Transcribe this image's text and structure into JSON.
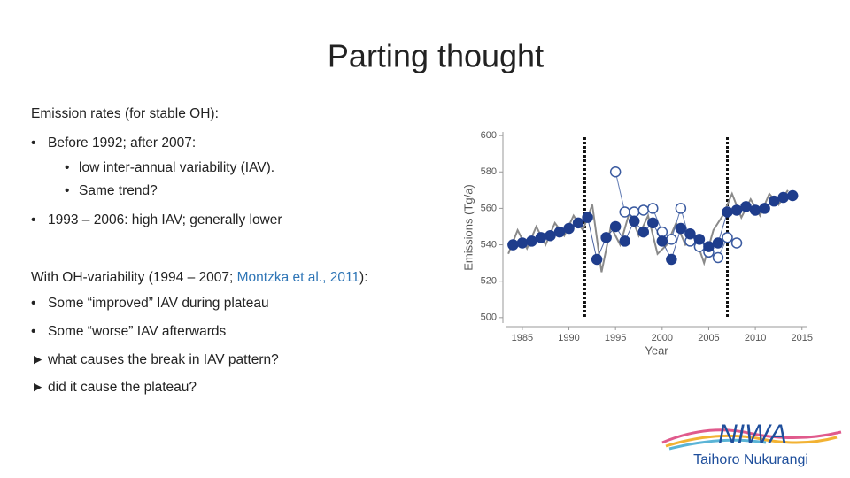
{
  "slide": {
    "title": "Parting thought",
    "lines": [
      {
        "text": "Emission rates (for stable OH):"
      },
      {
        "marker": "•",
        "text": "Before 1992; after 2007:"
      },
      {
        "marker": "•",
        "text": "low inter-annual variability (IAV)."
      },
      {
        "marker": "•",
        "text": "Same trend?"
      },
      {
        "marker": "•",
        "text": "1993 – 2006: high IAV; generally lower"
      },
      {
        "parts": [
          "With OH-variability (1994 – 2007; ",
          "Montzka et al., 2011",
          "):"
        ]
      },
      {
        "marker": "•",
        "text": "Some “improved” IAV during plateau"
      },
      {
        "marker": "•",
        "text": "Some “worse” IAV afterwards"
      },
      {
        "marker": "►",
        "text": "what causes the break in IAV pattern?"
      },
      {
        "marker": "►",
        "text": "did it cause the plateau?"
      }
    ],
    "logo": {
      "name": "NIWA",
      "subtitle": "Taihoro Nukurangi"
    }
  },
  "chart_data": {
    "type": "line",
    "x_label": "Year",
    "y_label": "Emissions (Tg/a)",
    "xlim": [
      1983.3,
      2015.5
    ],
    "ylim": [
      497,
      602
    ],
    "xticks": [
      1985,
      1990,
      1995,
      2000,
      2005,
      2010,
      2015
    ],
    "yticks": [
      500,
      520,
      540,
      560,
      580,
      600
    ],
    "vlines": [
      1991.7,
      2007
    ],
    "series": [
      {
        "style": "line",
        "color": "#8a8a8a",
        "x": [
          1983.5,
          1984.5,
          1985.5,
          1986.5,
          1987.5,
          1988.5,
          1989.5,
          1990.5,
          1991.5,
          1992.5,
          1993.5,
          1994.5,
          1995.5,
          1996.5,
          1997.5,
          1998.5,
          1999.5,
          2000.5,
          2001.5,
          2002.5,
          2003.5,
          2004.5,
          2005.5,
          2006.5,
          2007.5,
          2008.5,
          2009.5,
          2010.5,
          2011.5,
          2012.5,
          2013.5
        ],
        "values": [
          535,
          548,
          538,
          550,
          540,
          552,
          545,
          556,
          548,
          562,
          525,
          550,
          540,
          558,
          545,
          556,
          535,
          540,
          552,
          540,
          545,
          530,
          548,
          556,
          568,
          555,
          565,
          556,
          568,
          562,
          570
        ]
      },
      {
        "style": "open",
        "color": "#3a5aa0",
        "x": [
          1995,
          1996,
          1997,
          1998,
          1999,
          2000,
          2001,
          2002,
          2003,
          2004,
          2005,
          2006,
          2007,
          2008
        ],
        "values": [
          580,
          558,
          558,
          559,
          560,
          547,
          543,
          560,
          542,
          539,
          536,
          533,
          544,
          541
        ]
      },
      {
        "style": "filled",
        "color": "#1f3d8c",
        "x": [
          1984,
          1985,
          1986,
          1987,
          1988,
          1989,
          1990,
          1991,
          1992,
          1993,
          1994,
          1995,
          1996,
          1997,
          1998,
          1999,
          2000,
          2001,
          2002,
          2003,
          2004,
          2005,
          2006,
          2007,
          2008,
          2009,
          2010,
          2011,
          2012,
          2013,
          2014
        ],
        "values": [
          540,
          541,
          542,
          544,
          545,
          547,
          549,
          552,
          555,
          532,
          544,
          550,
          542,
          553,
          547,
          552,
          542,
          532,
          549,
          546,
          543,
          539,
          541,
          558,
          559,
          561,
          559,
          560,
          564,
          566,
          567
        ]
      }
    ]
  }
}
